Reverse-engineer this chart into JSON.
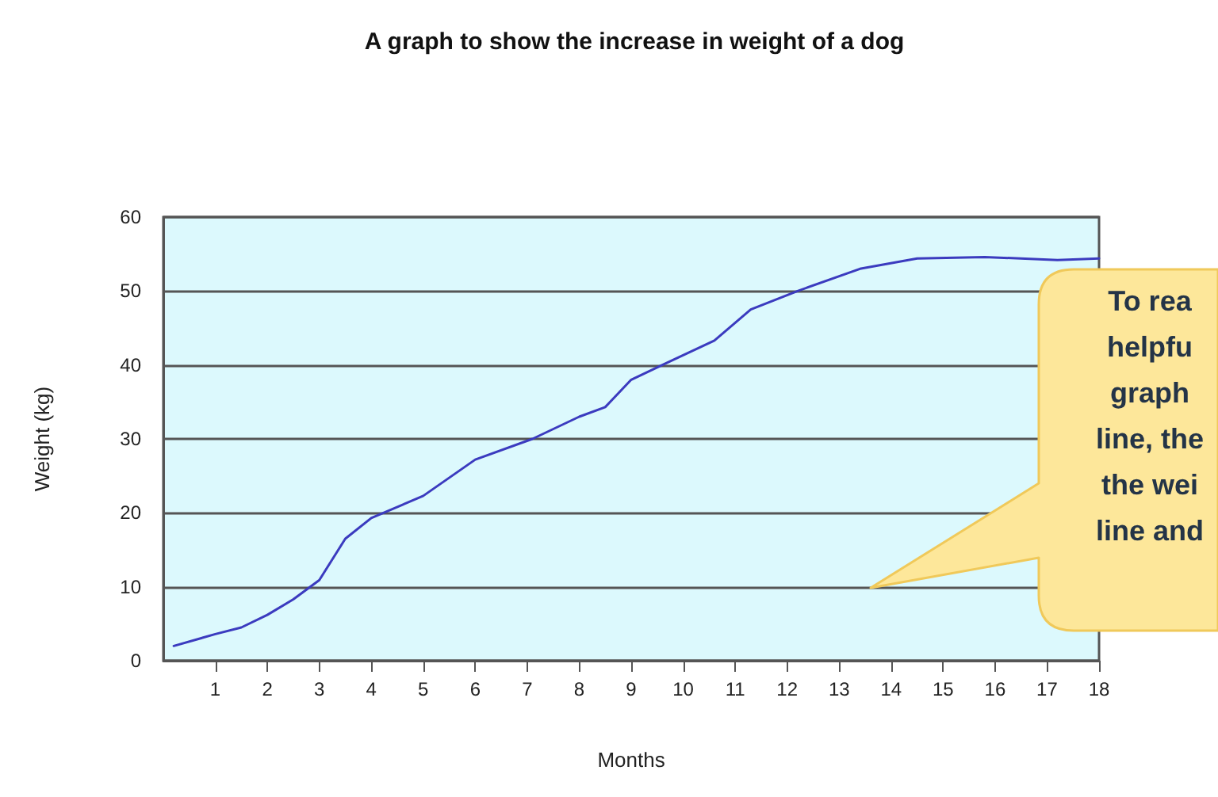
{
  "chart_data": {
    "type": "line",
    "title": "A graph to show the increase in weight of a dog",
    "xlabel": "Months",
    "ylabel": "Weight (kg)",
    "x": [
      0.2,
      1,
      1.5,
      2,
      2.5,
      3,
      3.5,
      4,
      5,
      6,
      7.1,
      8,
      8.5,
      9,
      9.6,
      10.6,
      11.3,
      12.2,
      13.4,
      14.5,
      15.8,
      17.2,
      18
    ],
    "series": [
      {
        "color": "#3b3bbf",
        "values": [
          2,
          3.6,
          4.5,
          6.2,
          8.3,
          10.9,
          16.5,
          19.3,
          22.3,
          27.2,
          30,
          33,
          34.3,
          38,
          40,
          43.3,
          47.5,
          50,
          53,
          54.4,
          54.6,
          54.2,
          54.4
        ]
      }
    ],
    "xlim": [
      0,
      18
    ],
    "xticks": [
      1,
      2,
      3,
      4,
      5,
      6,
      7,
      8,
      9,
      10,
      11,
      12,
      13,
      14,
      15,
      16,
      17,
      18
    ],
    "ylim": [
      0,
      60
    ],
    "yticks": [
      0,
      10,
      20,
      30,
      40,
      50,
      60
    ],
    "grid": "y",
    "marker": "none",
    "line_style": "solid",
    "annotations": [
      "To rea\nhelpfu\ngraph\nline, the\nthe wei\nline and"
    ]
  }
}
